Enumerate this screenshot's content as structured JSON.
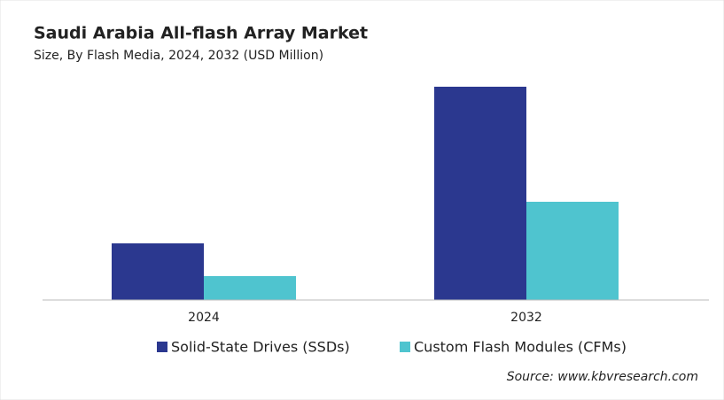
{
  "chart_data": {
    "type": "bar",
    "title": "Saudi Arabia All-flash Array Market",
    "subtitle": "Size, By Flash Media, 2024, 2032 (USD Million)",
    "categories": [
      "2024",
      "2032"
    ],
    "series": [
      {
        "name": "Solid-State Drives (SSDs)",
        "color": "#2b388f",
        "values": [
          64,
          241
        ]
      },
      {
        "name": "Custom Flash Modules (CFMs)",
        "color": "#4fc4cf",
        "values": [
          27,
          111
        ]
      }
    ],
    "ylim": [
      0,
      260
    ],
    "source": "Source: www.kbvresearch.com"
  }
}
